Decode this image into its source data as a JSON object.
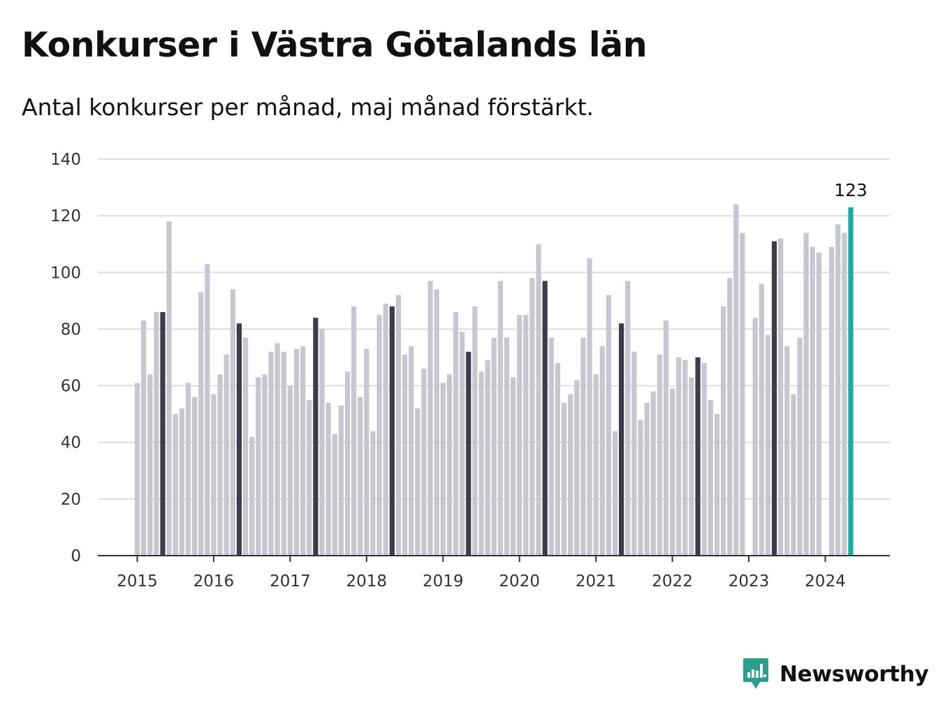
{
  "header": {
    "title": "Konkurser i Västra Götalands län",
    "subtitle": "Antal konkurser per månad, maj månad förstärkt."
  },
  "brand": {
    "name": "Newsworthy",
    "color": "#2a9d8f"
  },
  "colors": {
    "bar": "#c7c7d1",
    "highlight": "#3d3c4b",
    "latest": "#1fa89c",
    "grid": "#dcdce2",
    "axis": "#333333"
  },
  "chart_data": {
    "type": "bar",
    "title": "Konkurser i Västra Götalands län",
    "subtitle": "Antal konkurser per månad, maj månad förstärkt.",
    "xlabel": "",
    "ylabel": "",
    "ylim": [
      0,
      140
    ],
    "yticks": [
      0,
      20,
      40,
      60,
      80,
      100,
      120,
      140
    ],
    "xtick_labels": [
      "2015",
      "2016",
      "2017",
      "2018",
      "2019",
      "2020",
      "2021",
      "2022",
      "2023",
      "2024"
    ],
    "grid": true,
    "start": "2015-01",
    "highlight_month": "maj",
    "latest_label": "123",
    "values": [
      61,
      83,
      64,
      86,
      86,
      118,
      50,
      52,
      61,
      56,
      93,
      103,
      57,
      64,
      71,
      94,
      82,
      77,
      42,
      63,
      64,
      72,
      75,
      72,
      60,
      73,
      74,
      55,
      84,
      80,
      54,
      43,
      53,
      65,
      88,
      56,
      73,
      44,
      85,
      89,
      88,
      92,
      71,
      74,
      52,
      66,
      97,
      94,
      61,
      64,
      86,
      79,
      72,
      88,
      65,
      69,
      77,
      97,
      77,
      63,
      85,
      85,
      98,
      110,
      97,
      77,
      68,
      54,
      57,
      62,
      77,
      105,
      64,
      74,
      92,
      44,
      82,
      97,
      72,
      48,
      54,
      58,
      71,
      83,
      59,
      70,
      69,
      63,
      70,
      68,
      55,
      50,
      88,
      98,
      124,
      114,
      0,
      84,
      96,
      78,
      111,
      112,
      74,
      57,
      77,
      114,
      109,
      107,
      0,
      109,
      117,
      114,
      123
    ]
  }
}
